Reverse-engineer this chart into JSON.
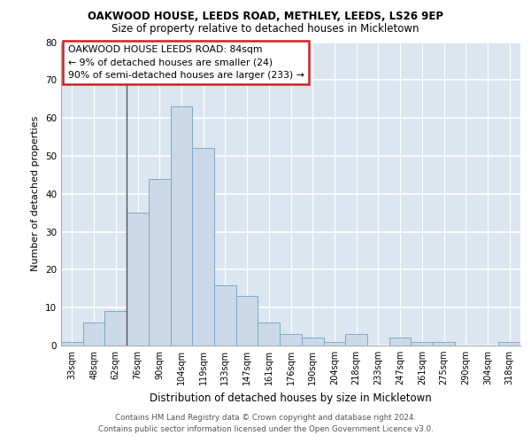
{
  "title1": "OAKWOOD HOUSE, LEEDS ROAD, METHLEY, LEEDS, LS26 9EP",
  "title2": "Size of property relative to detached houses in Mickletown",
  "xlabel": "Distribution of detached houses by size in Mickletown",
  "ylabel": "Number of detached properties",
  "categories": [
    "33sqm",
    "48sqm",
    "62sqm",
    "76sqm",
    "90sqm",
    "104sqm",
    "119sqm",
    "133sqm",
    "147sqm",
    "161sqm",
    "176sqm",
    "190sqm",
    "204sqm",
    "218sqm",
    "233sqm",
    "247sqm",
    "261sqm",
    "275sqm",
    "290sqm",
    "304sqm",
    "318sqm"
  ],
  "values": [
    1,
    6,
    9,
    35,
    44,
    63,
    52,
    16,
    13,
    6,
    3,
    2,
    1,
    3,
    0,
    2,
    1,
    1,
    0,
    0,
    1
  ],
  "bar_color": "#ccd9e8",
  "bar_edge_color": "#7aaac8",
  "annotation_text_line1": "OAKWOOD HOUSE LEEDS ROAD: 84sqm",
  "annotation_text_line2": "← 9% of detached houses are smaller (24)",
  "annotation_text_line3": "90% of semi-detached houses are larger (233) →",
  "annotation_box_facecolor": "#ffffff",
  "annotation_box_edgecolor": "#cc2222",
  "ylim": [
    0,
    80
  ],
  "yticks": [
    0,
    10,
    20,
    30,
    40,
    50,
    60,
    70,
    80
  ],
  "background_color": "#dce6f0",
  "grid_color": "#ffffff",
  "footer_line1": "Contains HM Land Registry data © Crown copyright and database right 2024.",
  "footer_line2": "Contains public sector information licensed under the Open Government Licence v3.0."
}
